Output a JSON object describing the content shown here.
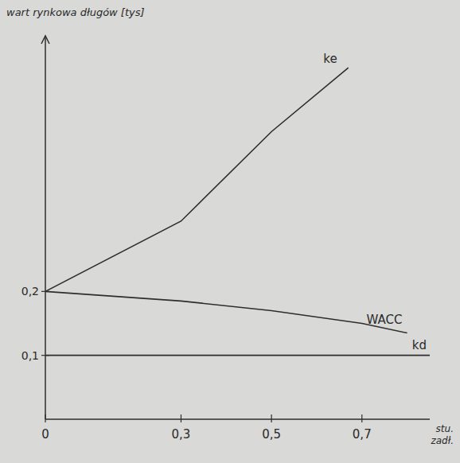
{
  "chart_data": {
    "type": "line",
    "y_label": "wart rynkowa długów [tys]",
    "x_label": "stu. zadł.",
    "xlim": [
      0,
      0.85
    ],
    "xticks": [
      {
        "value": 0,
        "label": "0"
      },
      {
        "value": 0.3,
        "label": "0,3"
      },
      {
        "value": 0.5,
        "label": "0,5"
      },
      {
        "value": 0.7,
        "label": "0,7"
      }
    ],
    "ylim": [
      0,
      0.6
    ],
    "yticks": [
      {
        "value": 0.1,
        "label": "0,1"
      },
      {
        "value": 0.2,
        "label": "0,2"
      }
    ],
    "grid": false,
    "series": [
      {
        "name": "ke",
        "color": "#2e2e2e",
        "x": [
          0,
          0.3,
          0.5,
          0.67
        ],
        "values": [
          0.2,
          0.31,
          0.45,
          0.55
        ]
      },
      {
        "name": "WACC",
        "color": "#2e2e2e",
        "x": [
          0,
          0.3,
          0.5,
          0.7,
          0.8
        ],
        "values": [
          0.2,
          0.185,
          0.17,
          0.15,
          0.135
        ]
      },
      {
        "name": "kd",
        "color": "#2e2e2e",
        "x": [
          0,
          0.85
        ],
        "values": [
          0.1,
          0.1
        ]
      }
    ]
  }
}
